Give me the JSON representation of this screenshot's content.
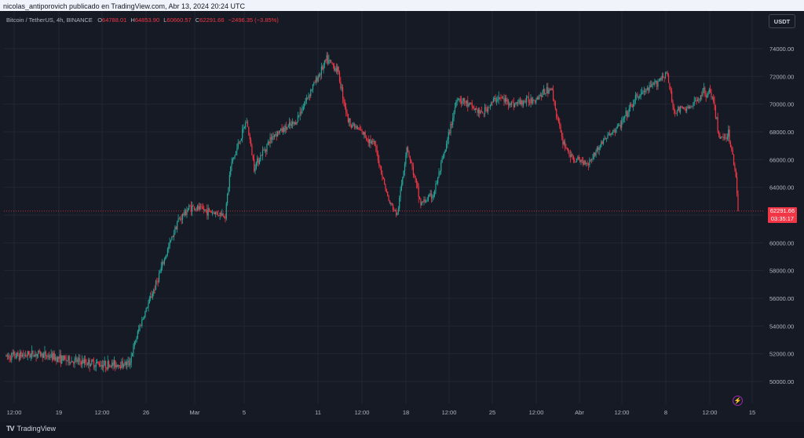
{
  "header": {
    "caption": "nicolas_antiporovich publicado en TradingView.com, Abr 13, 2024 20:24 UTC"
  },
  "legend": {
    "symbol": "Bitcoin / TetherUS, 4h, BINANCE",
    "open_label": "O",
    "open": "64788.01",
    "high_label": "H",
    "high": "64853.90",
    "low_label": "L",
    "low": "60660.57",
    "close_label": "C",
    "close": "62291.66",
    "change": "−2496.35 (−3.85%)"
  },
  "toolbar": {
    "currency": "USDT"
  },
  "price_label": {
    "price": "62291.66",
    "countdown": "03:35:17"
  },
  "footer": {
    "brand": "TradingView",
    "logo": "TV"
  },
  "icons": {
    "lightning": "lightning-icon"
  },
  "colors": {
    "up": "#26a69a",
    "down": "#f23645",
    "background": "#161a25",
    "grid": "#232632",
    "text": "#b2b5be"
  },
  "chart_data": {
    "type": "candlestick",
    "interval": "4h",
    "ylim": [
      49000,
      75500
    ],
    "y_ticks": [
      50000,
      52000,
      54000,
      56000,
      58000,
      60000,
      62000,
      64000,
      66000,
      68000,
      70000,
      72000,
      74000
    ],
    "y_tick_labels": [
      "50000.00",
      "52000.00",
      "54000.00",
      "56000.00",
      "58000.00",
      "60000.00",
      "62000.00",
      "64000.00",
      "66000.00",
      "68000.00",
      "70000.00",
      "72000.00",
      "74000.00"
    ],
    "x_tick_labels": [
      "12:00",
      "19",
      "12:00",
      "26",
      "Mar",
      "5",
      "11",
      "12:00",
      "18",
      "12:00",
      "25",
      "12:00",
      "Abr",
      "12:00",
      "8",
      "12:00",
      "15"
    ],
    "last_price": 62291.66,
    "key_points": [
      [
        0,
        51800
      ],
      [
        30,
        52000
      ],
      [
        60,
        51500
      ],
      [
        95,
        51200
      ],
      [
        115,
        51300
      ],
      [
        125,
        54000
      ],
      [
        140,
        57000
      ],
      [
        160,
        61500
      ],
      [
        172,
        62600
      ],
      [
        205,
        62000
      ],
      [
        210,
        65500
      ],
      [
        225,
        68800
      ],
      [
        232,
        65500
      ],
      [
        250,
        67800
      ],
      [
        270,
        68600
      ],
      [
        285,
        71000
      ],
      [
        300,
        73200
      ],
      [
        310,
        72500
      ],
      [
        320,
        68800
      ],
      [
        335,
        67800
      ],
      [
        345,
        67000
      ],
      [
        358,
        63000
      ],
      [
        366,
        62000
      ],
      [
        375,
        67000
      ],
      [
        388,
        62800
      ],
      [
        400,
        63500
      ],
      [
        412,
        67000
      ],
      [
        422,
        70500
      ],
      [
        445,
        69300
      ],
      [
        460,
        70500
      ],
      [
        475,
        70000
      ],
      [
        495,
        70400
      ],
      [
        510,
        71200
      ],
      [
        520,
        67500
      ],
      [
        530,
        66000
      ],
      [
        545,
        65800
      ],
      [
        560,
        67500
      ],
      [
        575,
        68500
      ],
      [
        590,
        70500
      ],
      [
        605,
        71300
      ],
      [
        618,
        72300
      ],
      [
        625,
        69500
      ],
      [
        642,
        69800
      ],
      [
        652,
        70900
      ],
      [
        660,
        70800
      ],
      [
        668,
        67500
      ],
      [
        676,
        67900
      ],
      [
        683,
        64900
      ],
      [
        685,
        62291.66
      ]
    ],
    "candle_count": 686
  }
}
